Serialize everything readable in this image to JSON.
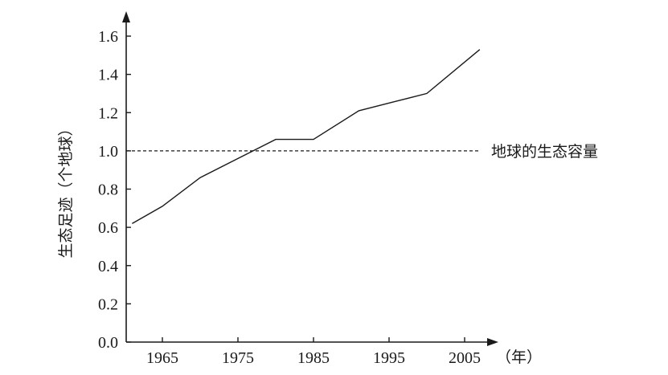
{
  "chart_data": {
    "type": "line",
    "ylabel": "生态足迹（个地球）",
    "xunit": "（年）",
    "ylim": [
      0,
      1.6
    ],
    "xlim": [
      1961,
      2007
    ],
    "yticks": [
      "0.0",
      "0.2",
      "0.4",
      "0.6",
      "0.8",
      "1.0",
      "1.2",
      "1.4",
      "1.6"
    ],
    "xticks": [
      "1965",
      "1975",
      "1985",
      "1995",
      "2005"
    ],
    "series": [
      {
        "x": [
          1961,
          1965,
          1970,
          1975,
          1980,
          1985,
          1991,
          1995,
          2000,
          2007
        ],
        "values": [
          0.62,
          0.71,
          0.86,
          0.96,
          1.06,
          1.06,
          1.21,
          1.25,
          1.3,
          1.53
        ]
      }
    ],
    "reference_line": {
      "value": 1.0,
      "label": "地球的生态容量",
      "style": "dashed"
    },
    "grid": false,
    "legend": "none"
  }
}
